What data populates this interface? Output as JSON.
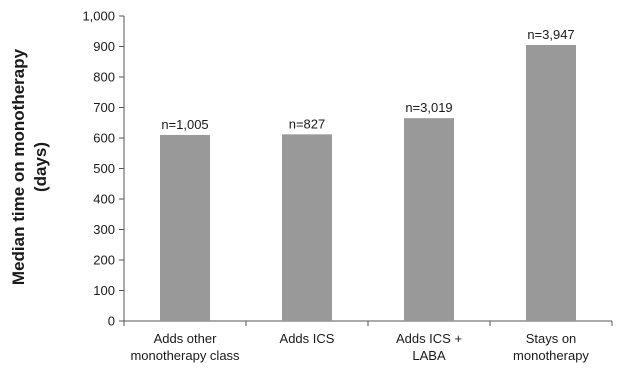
{
  "chart_data": {
    "type": "bar",
    "categories": [
      [
        "Adds other",
        "monotherapy class"
      ],
      [
        "Adds ICS"
      ],
      [
        "Adds ICS +",
        "LABA"
      ],
      [
        "Stays on",
        "monotherapy"
      ]
    ],
    "values": [
      610,
      612,
      665,
      905
    ],
    "data_labels": [
      "n=1,005",
      "n=827",
      "n=3,019",
      "n=3,947"
    ],
    "ylabel": [
      "Median time on monotherapy",
      "(days)"
    ],
    "xlabel": "",
    "title": "",
    "ylim": [
      0,
      1000
    ],
    "yticks": [
      0,
      100,
      200,
      300,
      400,
      500,
      600,
      700,
      800,
      900,
      1000
    ],
    "ytick_labels": [
      "0",
      "100",
      "200",
      "300",
      "400",
      "500",
      "600",
      "700",
      "800",
      "900",
      "1,000"
    ],
    "grid": false,
    "legend": "none",
    "bar_color": "#999999",
    "axis_color": "#555555"
  }
}
